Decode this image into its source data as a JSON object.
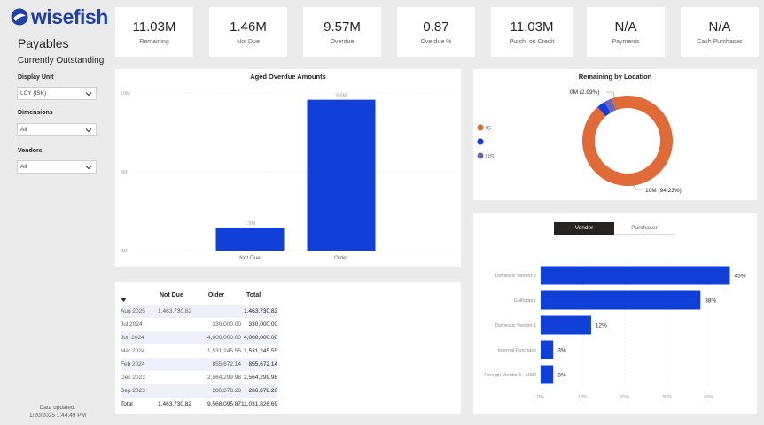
{
  "brand": {
    "name": "wisefish",
    "color": "#1d3fa6"
  },
  "page": {
    "title": "Payables",
    "subtitle": "Currently Outstanding"
  },
  "filters": [
    {
      "label": "Display Unit",
      "value": "LCY (ISK)"
    },
    {
      "label": "Dimensions",
      "value": "All"
    },
    {
      "label": "Vendors",
      "value": "All"
    }
  ],
  "updated": {
    "label": "Data updated:",
    "value": "1/20/2025 1:44:49 PM"
  },
  "kpis": [
    {
      "value": "11.03M",
      "label": "Remaining"
    },
    {
      "value": "1.46M",
      "label": "Not Due"
    },
    {
      "value": "9.57M",
      "label": "Overdue"
    },
    {
      "value": "0.87",
      "label": "Overdue %"
    },
    {
      "value": "11.03M",
      "label": "Purch. on Credit"
    },
    {
      "value": "N/A",
      "label": "Payments"
    },
    {
      "value": "N/A",
      "label": "Cash Purchases"
    }
  ],
  "aged_chart": {
    "title": "Aged Overdue Amounts",
    "color": "#1140d9",
    "y_ticks": [
      "0M",
      "5M",
      "10M"
    ],
    "ylim": [
      0,
      10
    ],
    "categories": [
      "Not Due",
      "Older"
    ],
    "values": [
      1.46,
      9.57
    ],
    "data_labels": [
      "1.5M",
      "9.6M"
    ]
  },
  "location_chart": {
    "title": "Remaining by Location",
    "legend": [
      {
        "label": "IS",
        "color": "#e06b38"
      },
      {
        "label": "",
        "color": "#1140d9"
      },
      {
        "label": "US",
        "color": "#6d66b0"
      }
    ],
    "slices": [
      {
        "value": 94.23,
        "color": "#e06b38"
      },
      {
        "value": 2.99,
        "color": "#1140d9"
      },
      {
        "value": 2.78,
        "color": "#6d66b0"
      }
    ],
    "labels": {
      "small": "0M (2.99%)",
      "large": "10M (94.23%)"
    }
  },
  "aging_table": {
    "headers": [
      "",
      "Not Due",
      "Older",
      "Total"
    ],
    "rows": [
      [
        "Aug 2025",
        "1,463,730.82",
        "",
        "1,463,730.82"
      ],
      [
        "Jul 2024",
        "",
        "330,000.00",
        "330,000.00"
      ],
      [
        "Jun 2024",
        "",
        "4,000,000.00",
        "4,000,000.00"
      ],
      [
        "Mar 2024",
        "",
        "1,531,245.55",
        "1,531,245.55"
      ],
      [
        "Feb 2024",
        "",
        "855,672.14",
        "855,672.14"
      ],
      [
        "Dec 2023",
        "",
        "2,564,299.98",
        "2,564,299.98"
      ],
      [
        "Sep 2023",
        "",
        "286,878.20",
        "286,878.20"
      ]
    ],
    "total": [
      "Total",
      "1,463,730.82",
      "9,568,095.87",
      "11,031,826.69"
    ]
  },
  "vendor_toggle": {
    "active": "Vendor",
    "inactive": "Purchaser"
  },
  "vendor_chart": {
    "type": "bar",
    "color": "#1140d9",
    "categories": [
      "Domestic Vendor 2",
      "Gulltoppur",
      "Domestic Vendor 1",
      "Internal Purchase",
      "Foreign Vendor 1 - USD"
    ],
    "values": [
      45,
      38,
      12,
      3,
      3
    ],
    "data_labels": [
      "45%",
      "38%",
      "12%",
      "3%",
      "3%"
    ],
    "x_ticks": [
      "0%",
      "10%",
      "20%",
      "30%",
      "40%"
    ],
    "xlim": [
      0,
      47
    ]
  }
}
